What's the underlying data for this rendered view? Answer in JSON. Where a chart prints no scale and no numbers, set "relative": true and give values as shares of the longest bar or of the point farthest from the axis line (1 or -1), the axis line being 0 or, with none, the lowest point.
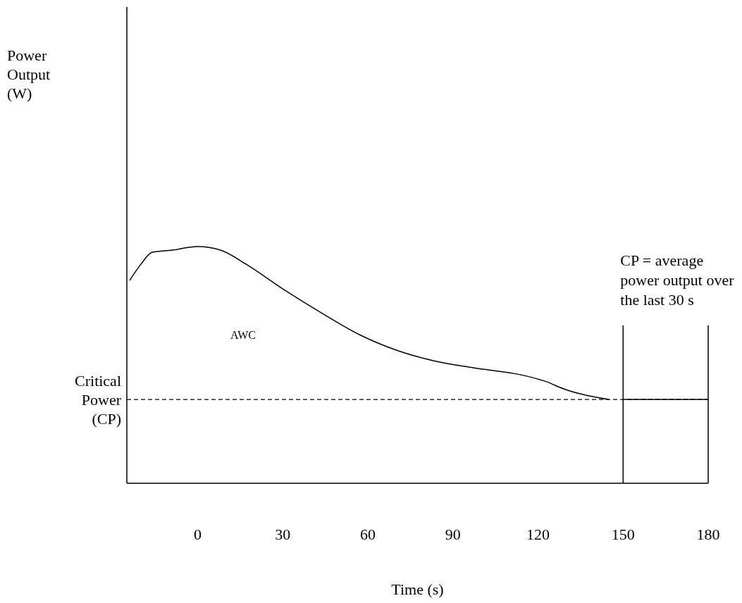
{
  "chart_data": {
    "type": "line",
    "relative": true,
    "xlabel": "Time (s)",
    "xlim": [
      -25,
      180
    ],
    "xticks": [
      0,
      30,
      60,
      90,
      120,
      150,
      180
    ],
    "grid": false,
    "marker": "none",
    "series": [
      {
        "color": "#000000",
        "line_style": "solid",
        "x": [
          -24,
          -20,
          -16,
          -9,
          0,
          8,
          17,
          30,
          44,
          57,
          70,
          83,
          97,
          114,
          123,
          129,
          138,
          145
        ],
        "values": [
          0.857,
          0.926,
          0.976,
          0.985,
          1,
          0.985,
          0.926,
          0.821,
          0.717,
          0.628,
          0.5625,
          0.518,
          0.488,
          0.458,
          0.429,
          0.399,
          0.369,
          0.354
        ]
      },
      {
        "color": "#000000",
        "line_style": "solid",
        "x": [
          150,
          180
        ],
        "values": [
          0.354,
          0.354
        ]
      }
    ],
    "ref_lines": [
      {
        "axis": "y",
        "value": 0.354,
        "label": "Critical Power (CP)",
        "line_style": "dashed",
        "color": "#000000"
      },
      {
        "axis": "x",
        "value": 150,
        "label": "CP = average power output over the last 30 s",
        "line_style": "solid",
        "color": "#000000"
      },
      {
        "axis": "x",
        "value": 180,
        "line_style": "solid",
        "color": "#000000"
      }
    ],
    "annotations": [
      "Power Output (W)",
      "AWC"
    ]
  }
}
